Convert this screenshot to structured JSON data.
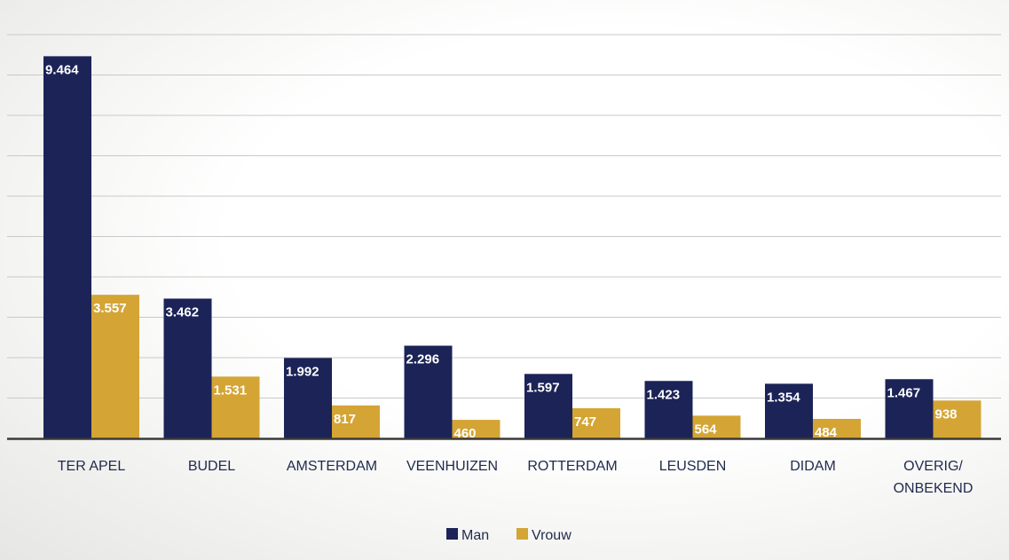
{
  "chart_data": {
    "type": "bar",
    "categories": [
      "TER APEL",
      "BUDEL",
      "AMSTERDAM",
      "VEENHUIZEN",
      "ROTTERDAM",
      "LEUSDEN",
      "DIDAM",
      "OVERIG/\nONBEKEND"
    ],
    "series": [
      {
        "name": "Man",
        "color": "#1b2357",
        "values": [
          9464,
          3462,
          1992,
          2296,
          1597,
          1423,
          1354,
          1467
        ],
        "labels": [
          "9.464",
          "3.462",
          "1.992",
          "2.296",
          "1.597",
          "1.423",
          "1.354",
          "1.467"
        ]
      },
      {
        "name": "Vrouw",
        "color": "#d4a535",
        "values": [
          3557,
          1531,
          817,
          460,
          747,
          564,
          484,
          938
        ],
        "labels": [
          "3.557",
          "1.531",
          "817",
          "460",
          "747",
          "564",
          "484",
          "938"
        ]
      }
    ],
    "ylim": [
      0,
      10000
    ],
    "grid": true,
    "legend": "bottom"
  }
}
